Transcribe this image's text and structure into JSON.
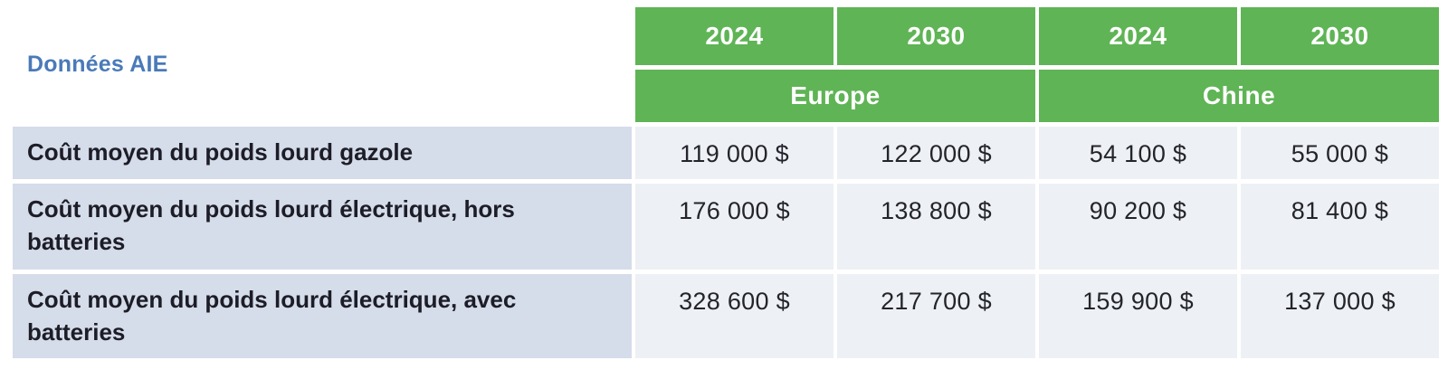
{
  "source_label": "Données AIE",
  "colors": {
    "header_green": "#5fb455",
    "header_text": "#ffffff",
    "label_bg": "#d5dcea",
    "value_bg": "#edf0f4",
    "label_text": "#1d1d27",
    "source_label_blue": "#4a7ab8"
  },
  "table": {
    "year_headers": [
      "2024",
      "2030",
      "2024",
      "2030"
    ],
    "region_headers": [
      "Europe",
      "Chine"
    ],
    "rows": [
      {
        "label": "Coût moyen du poids lourd gazole",
        "values": [
          "119 000 $",
          "122 000 $",
          "54 100 $",
          "55 000 $"
        ]
      },
      {
        "label": "Coût moyen du poids lourd électrique, hors batteries",
        "values": [
          "176 000 $",
          "138 800 $",
          "90 200 $",
          "81 400 $"
        ]
      },
      {
        "label": "Coût moyen du poids lourd électrique, avec batteries",
        "values": [
          "328 600 $",
          "217 700 $",
          "159 900 $",
          "137 000 $"
        ]
      }
    ]
  },
  "chart_data": {
    "type": "table",
    "title": "Données AIE",
    "column_groups": [
      {
        "label": "Europe",
        "years": [
          "2024",
          "2030"
        ]
      },
      {
        "label": "Chine",
        "years": [
          "2024",
          "2030"
        ]
      }
    ],
    "columns": [
      "Europe 2024",
      "Europe 2030",
      "Chine 2024",
      "Chine 2030"
    ],
    "unit": "$",
    "rows": [
      {
        "label": "Coût moyen du poids lourd gazole",
        "values": [
          119000,
          122000,
          54100,
          55000
        ]
      },
      {
        "label": "Coût moyen du poids lourd électrique, hors batteries",
        "values": [
          176000,
          138800,
          90200,
          81400
        ]
      },
      {
        "label": "Coût moyen du poids lourd électrique, avec batteries",
        "values": [
          328600,
          217700,
          159900,
          137000
        ]
      }
    ]
  }
}
